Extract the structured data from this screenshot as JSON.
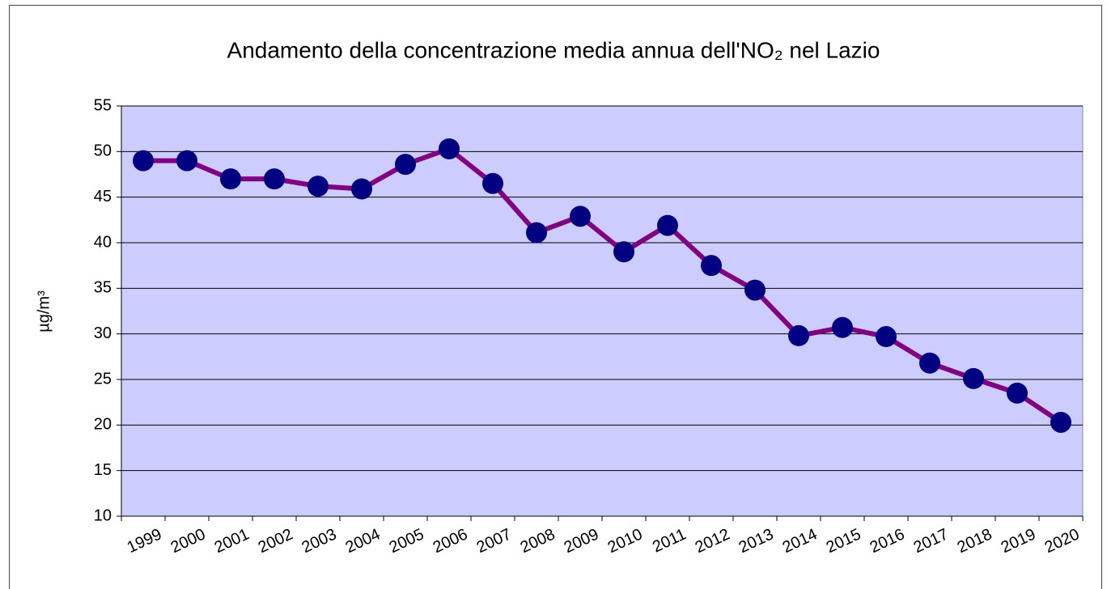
{
  "chart_data": {
    "type": "line",
    "title": "Andamento della concentrazione media annua dell'NO₂ nel Lazio",
    "y_label": "µg/m³",
    "categories": [
      "1999",
      "2000",
      "2001",
      "2002",
      "2003",
      "2004",
      "2005",
      "2006",
      "2007",
      "2008",
      "2009",
      "2010",
      "2011",
      "2012",
      "2013",
      "2014",
      "2015",
      "2016",
      "2017",
      "2018",
      "2019",
      "2020"
    ],
    "series": [
      {
        "name": "NO₂",
        "color": "#800080",
        "marker_color": "#000080",
        "values": [
          49.0,
          49.0,
          47.0,
          47.0,
          46.2,
          45.9,
          48.6,
          50.3,
          46.5,
          41.1,
          42.9,
          39.0,
          41.9,
          37.5,
          34.8,
          29.8,
          30.7,
          29.7,
          26.8,
          25.1,
          23.5,
          20.3
        ]
      }
    ],
    "ylim": [
      10,
      55
    ],
    "yticks": [
      10,
      15,
      20,
      25,
      30,
      35,
      40,
      45,
      50,
      55
    ],
    "grid": true,
    "plot_background": "#ccccff"
  }
}
